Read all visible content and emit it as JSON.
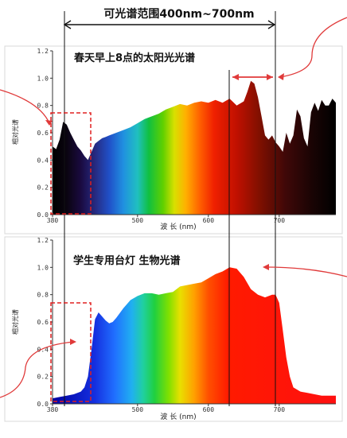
{
  "range_label": "可光谱范围400nm~700nm",
  "colors": {
    "annotation_red": "#e03a3a",
    "dashed_box": "#e02020",
    "axis": "#333333"
  },
  "chart_data": [
    {
      "type": "area",
      "title": "春天早上8点的太阳光光谱",
      "xlabel": "波 长 (nm)",
      "ylabel": "相对光谱",
      "xlim": [
        380,
        780
      ],
      "ylim": [
        0,
        1.2
      ],
      "x_ticks": [
        {
          "v": 380,
          "t": "380"
        },
        {
          "v": 500,
          "t": "500"
        },
        {
          "v": 600,
          "t": "600"
        },
        {
          "v": 700,
          "t": "700"
        }
      ],
      "y_ticks": [
        {
          "v": 0,
          "t": "0.0"
        },
        {
          "v": 0.2,
          "t": "0.2"
        },
        {
          "v": 0.4,
          "t": "0.4"
        },
        {
          "v": 0.6,
          "t": "0.6"
        },
        {
          "v": 0.8,
          "t": "0.8"
        },
        {
          "v": 1.0,
          "t": "1.0"
        },
        {
          "v": 1.2,
          "t": "1.2"
        }
      ],
      "x": [
        380,
        385,
        390,
        395,
        400,
        405,
        410,
        415,
        420,
        425,
        430,
        435,
        440,
        445,
        450,
        455,
        460,
        470,
        480,
        490,
        500,
        510,
        520,
        530,
        540,
        550,
        560,
        570,
        580,
        590,
        600,
        610,
        620,
        630,
        640,
        650,
        655,
        660,
        665,
        670,
        675,
        680,
        685,
        690,
        695,
        700,
        705,
        710,
        715,
        720,
        725,
        730,
        735,
        740,
        745,
        750,
        755,
        760,
        765,
        770,
        775,
        780
      ],
      "y": [
        0.5,
        0.48,
        0.55,
        0.68,
        0.66,
        0.6,
        0.55,
        0.5,
        0.47,
        0.43,
        0.4,
        0.46,
        0.52,
        0.54,
        0.56,
        0.57,
        0.58,
        0.6,
        0.62,
        0.64,
        0.67,
        0.7,
        0.72,
        0.74,
        0.77,
        0.79,
        0.81,
        0.8,
        0.82,
        0.83,
        0.82,
        0.84,
        0.82,
        0.85,
        0.8,
        0.83,
        0.9,
        0.98,
        0.96,
        0.86,
        0.72,
        0.58,
        0.55,
        0.58,
        0.53,
        0.5,
        0.46,
        0.6,
        0.52,
        0.58,
        0.77,
        0.72,
        0.56,
        0.5,
        0.75,
        0.82,
        0.76,
        0.84,
        0.8,
        0.8,
        0.85,
        0.82
      ]
    },
    {
      "type": "area",
      "title": "学生专用台灯 生物光谱",
      "xlabel": "波 长 (nm)",
      "ylabel": "相对光谱",
      "xlim": [
        380,
        780
      ],
      "ylim": [
        0,
        1.2
      ],
      "x_ticks": [
        {
          "v": 380,
          "t": "380"
        },
        {
          "v": 500,
          "t": "500"
        },
        {
          "v": 600,
          "t": "600"
        },
        {
          "v": 700,
          "t": "700"
        }
      ],
      "y_ticks": [
        {
          "v": 0,
          "t": "0.0"
        },
        {
          "v": 0.2,
          "t": "0.2"
        },
        {
          "v": 0.4,
          "t": "0.4"
        },
        {
          "v": 0.6,
          "t": "0.6"
        },
        {
          "v": 0.8,
          "t": "0.8"
        },
        {
          "v": 1.0,
          "t": "1.0"
        },
        {
          "v": 1.2,
          "t": "1.2"
        }
      ],
      "x": [
        380,
        390,
        400,
        410,
        420,
        425,
        430,
        435,
        440,
        445,
        450,
        455,
        460,
        465,
        470,
        480,
        490,
        500,
        510,
        520,
        530,
        540,
        550,
        560,
        570,
        580,
        590,
        600,
        610,
        620,
        630,
        640,
        650,
        660,
        670,
        680,
        690,
        695,
        700,
        705,
        710,
        715,
        720,
        730,
        740,
        750,
        760,
        770,
        780
      ],
      "y": [
        0.04,
        0.05,
        0.06,
        0.07,
        0.09,
        0.12,
        0.2,
        0.4,
        0.62,
        0.67,
        0.64,
        0.61,
        0.59,
        0.6,
        0.63,
        0.7,
        0.76,
        0.79,
        0.81,
        0.81,
        0.8,
        0.81,
        0.82,
        0.86,
        0.87,
        0.88,
        0.89,
        0.92,
        0.95,
        0.97,
        1.0,
        0.99,
        0.93,
        0.84,
        0.8,
        0.78,
        0.8,
        0.8,
        0.74,
        0.54,
        0.34,
        0.2,
        0.12,
        0.09,
        0.08,
        0.07,
        0.06,
        0.06,
        0.06
      ]
    }
  ]
}
